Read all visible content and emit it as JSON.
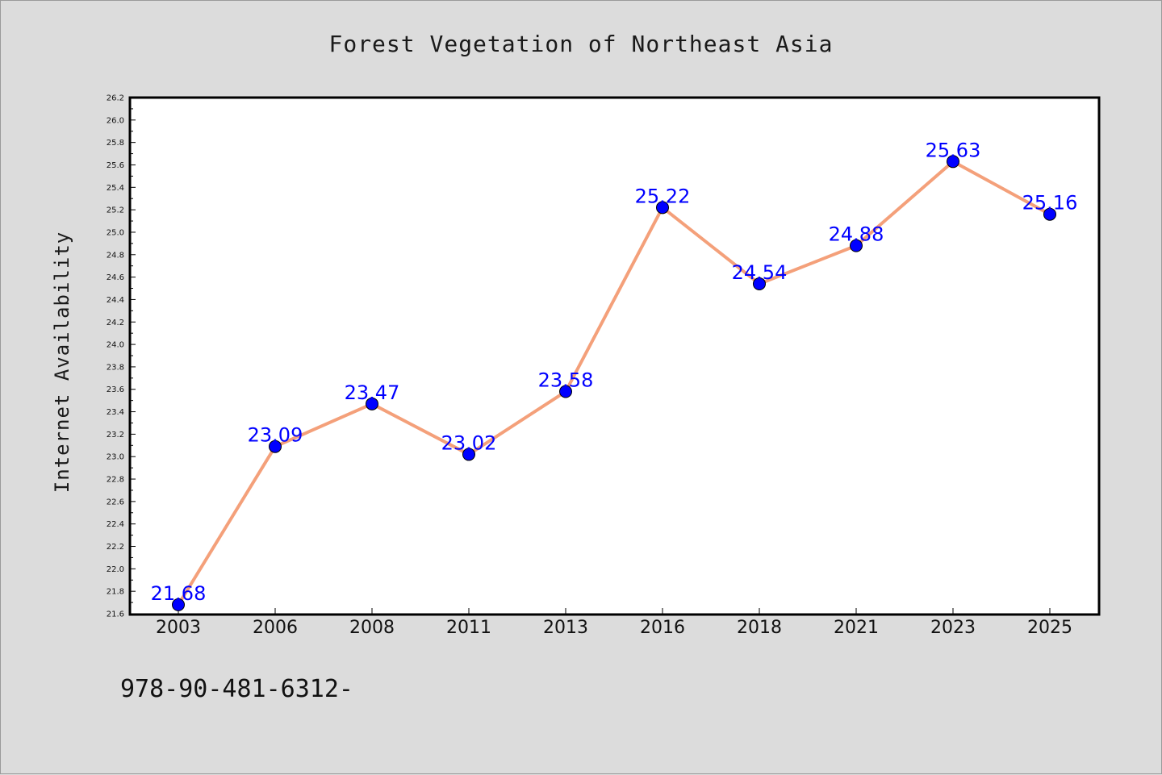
{
  "chart_data": {
    "type": "line",
    "title": "Forest Vegetation of Northeast Asia",
    "xlabel": "",
    "ylabel": "Internet Availability",
    "categories": [
      "2003",
      "2006",
      "2008",
      "2011",
      "2013",
      "2016",
      "2018",
      "2021",
      "2023",
      "2025"
    ],
    "values": [
      21.68,
      23.09,
      23.47,
      23.02,
      23.58,
      25.22,
      24.54,
      24.88,
      25.63,
      25.16
    ],
    "data_labels": [
      "21.68",
      "23.09",
      "23.47",
      "23.02",
      "23.58",
      "25.22",
      "24.54",
      "24.88",
      "25.63",
      "25.16"
    ],
    "ylim": [
      21.6,
      26.2
    ],
    "yticks": [
      "21.6",
      "21.8",
      "22.0",
      "22.2",
      "22.4",
      "22.6",
      "22.8",
      "23.0",
      "23.2",
      "23.4",
      "23.6",
      "23.8",
      "24.0",
      "24.2",
      "24.4",
      "24.6",
      "24.8",
      "25.0",
      "25.2",
      "25.4",
      "25.6",
      "25.8",
      "26.0",
      "26.2"
    ],
    "grid": false,
    "line_color": "#f4a07a",
    "marker_color": "#0000ff",
    "label_color": "#0000ff"
  },
  "footer_text": "978-90-481-6312-"
}
